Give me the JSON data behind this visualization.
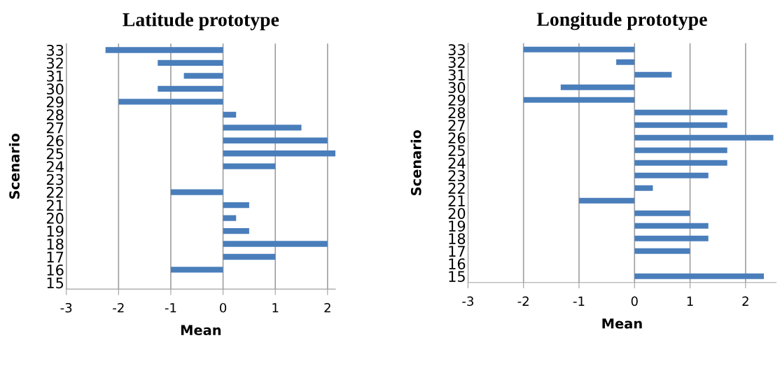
{
  "chart_data": [
    {
      "type": "bar",
      "orientation": "horizontal",
      "title": "Latitude prototype",
      "xlabel": "Mean",
      "ylabel": "Scenario",
      "categories": [
        "33",
        "32",
        "31",
        "30",
        "29",
        "28",
        "27",
        "26",
        "25",
        "24",
        "23",
        "22",
        "21",
        "20",
        "19",
        "18",
        "17",
        "16",
        "15"
      ],
      "values": [
        -2.25,
        -1.25,
        -0.75,
        -1.25,
        -2,
        0.25,
        1.5,
        2,
        2.15,
        1,
        0,
        -1,
        0.5,
        0.25,
        0.5,
        2,
        1,
        -1,
        0
      ],
      "color": "#4a7ebb",
      "xlim": [
        -3,
        2.15
      ],
      "xticks": [
        -3,
        -2,
        -1,
        0,
        1,
        2
      ],
      "grid": "x"
    },
    {
      "type": "bar",
      "orientation": "horizontal",
      "title": "Longitude prototype",
      "xlabel": "Mean",
      "ylabel": "Scenario",
      "categories": [
        "33",
        "32",
        "31",
        "30",
        "29",
        "28",
        "27",
        "26",
        "25",
        "24",
        "23",
        "22",
        "21",
        "20",
        "19",
        "18",
        "17",
        "16",
        "15"
      ],
      "values": [
        -2,
        -0.33,
        0.67,
        -1.33,
        -2,
        1.67,
        1.67,
        2.5,
        1.67,
        1.67,
        1.33,
        0.33,
        -1,
        1,
        1.33,
        1.33,
        1,
        0,
        2.33
      ],
      "color": "#4a7ebb",
      "xlim": [
        -3,
        2.55
      ],
      "xticks": [
        -3,
        -2,
        -1,
        0,
        1,
        2
      ],
      "grid": "x"
    }
  ]
}
